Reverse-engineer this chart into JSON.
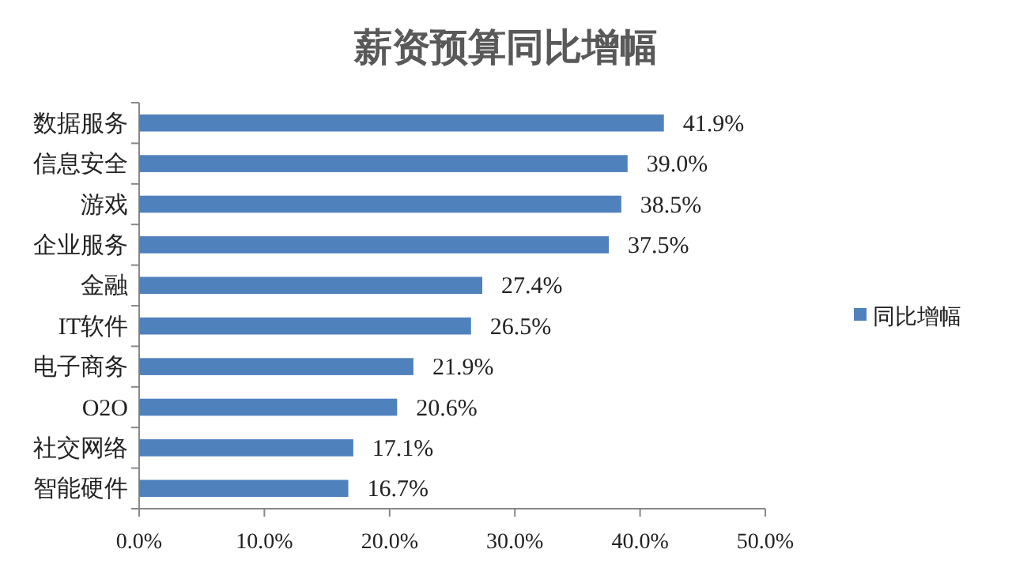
{
  "chart_data": {
    "type": "bar",
    "orientation": "horizontal",
    "title": "薪资预算同比增幅",
    "categories": [
      "数据服务",
      "信息安全",
      "游戏",
      "企业服务",
      "金融",
      "IT软件",
      "电子商务",
      "O2O",
      "社交网络",
      "智能硬件"
    ],
    "series": [
      {
        "name": "同比增幅",
        "color": "#4f81bd",
        "values": [
          41.9,
          39.0,
          38.5,
          37.5,
          27.4,
          26.5,
          21.9,
          20.6,
          17.1,
          16.7
        ],
        "value_labels": [
          "41.9%",
          "39.0%",
          "38.5%",
          "37.5%",
          "27.4%",
          "26.5%",
          "21.9%",
          "20.6%",
          "17.1%",
          "16.7%"
        ]
      }
    ],
    "xlim": [
      0,
      50
    ],
    "xticks": [
      {
        "value": 0,
        "label": "0.0%"
      },
      {
        "value": 10,
        "label": "10.0%"
      },
      {
        "value": 20,
        "label": "20.0%"
      },
      {
        "value": 30,
        "label": "30.0%"
      },
      {
        "value": 40,
        "label": "40.0%"
      },
      {
        "value": 50,
        "label": "50.0%"
      }
    ],
    "grid": false,
    "legend": "right"
  }
}
